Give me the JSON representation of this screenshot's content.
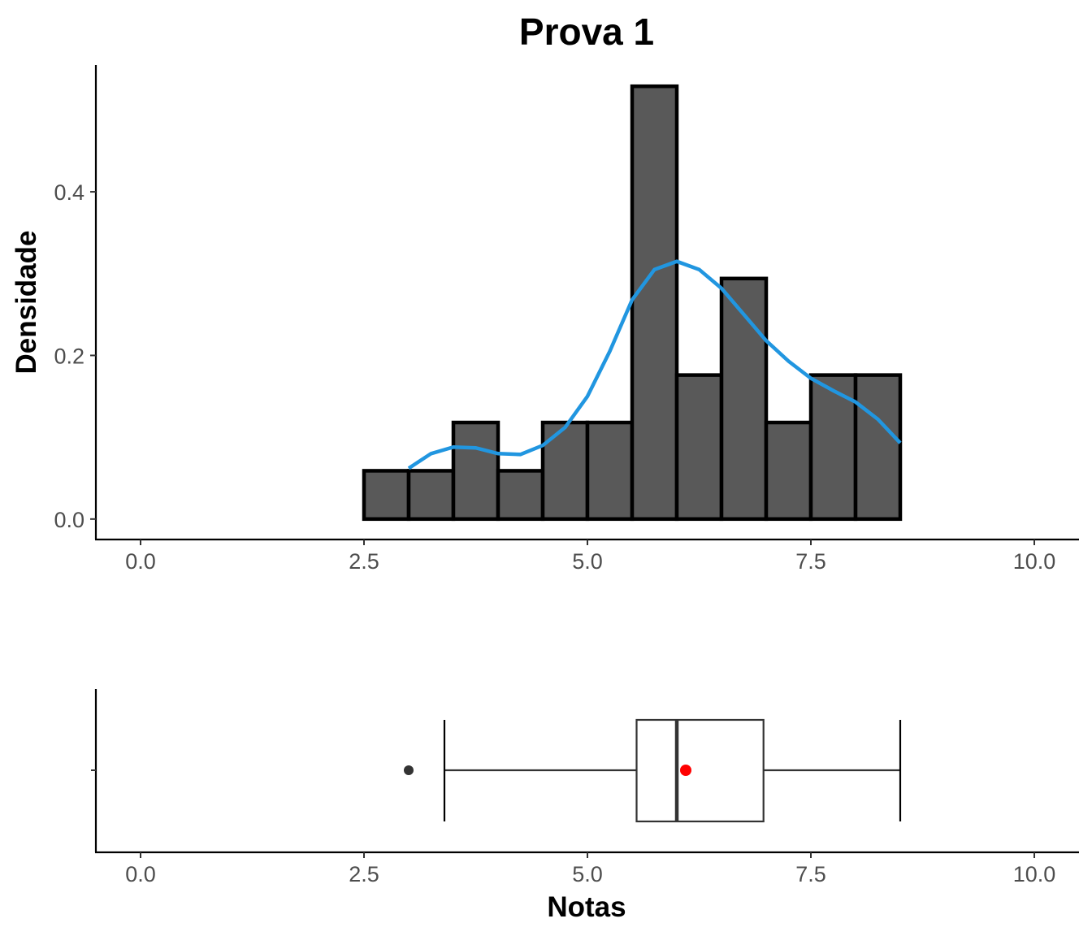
{
  "chart_data": [
    {
      "type": "bar",
      "subtype": "histogram",
      "title": "Prova 1",
      "xlabel": "",
      "ylabel": "Densidade",
      "xlim": [
        -0.5,
        10.5
      ],
      "ylim": [
        -0.025,
        0.555
      ],
      "x_ticks": [
        0,
        2.5,
        5,
        7.5,
        10
      ],
      "x_tick_labels": [
        "0.0",
        "2.5",
        "5.0",
        "7.5",
        "10.0"
      ],
      "y_ticks": [
        0,
        0.2,
        0.4
      ],
      "y_tick_labels": [
        "0.0",
        "0.2",
        "0.4"
      ],
      "bin_width": 0.5,
      "bin_starts": [
        0,
        0.5,
        1,
        1.5,
        2,
        2.5,
        3,
        3.5,
        4,
        4.5,
        5,
        5.5,
        6,
        6.5,
        7,
        7.5,
        8,
        8.5,
        9,
        9.5
      ],
      "values": [
        0,
        0,
        0,
        0,
        0,
        0.059,
        0.059,
        0.118,
        0.059,
        0.118,
        0.118,
        0.529,
        0.176,
        0.294,
        0.118,
        0.176,
        0.176,
        0,
        0,
        0
      ],
      "bar_fill": "#595959",
      "bar_stroke": "#000000",
      "density_curve": {
        "color": "#2196e0",
        "x": [
          3.0,
          3.25,
          3.5,
          3.75,
          4.0,
          4.25,
          4.5,
          4.75,
          5.0,
          5.25,
          5.5,
          5.75,
          6.0,
          6.25,
          6.5,
          6.75,
          7.0,
          7.25,
          7.5,
          7.75,
          8.0,
          8.25,
          8.5
        ],
        "y": [
          0.062,
          0.08,
          0.088,
          0.087,
          0.08,
          0.079,
          0.09,
          0.112,
          0.15,
          0.205,
          0.268,
          0.305,
          0.315,
          0.305,
          0.282,
          0.25,
          0.218,
          0.193,
          0.172,
          0.157,
          0.143,
          0.122,
          0.093
        ]
      }
    },
    {
      "type": "boxplot",
      "xlabel": "Notas",
      "xlim": [
        -0.5,
        10.5
      ],
      "x_ticks": [
        0,
        2.5,
        5,
        7.5,
        10
      ],
      "x_tick_labels": [
        "0.0",
        "2.5",
        "5.0",
        "7.5",
        "10.0"
      ],
      "whisker_low": 3.4,
      "q1": 5.55,
      "median": 6.0,
      "q3": 6.97,
      "whisker_high": 8.5,
      "outliers": [
        3.0
      ],
      "mean": 6.1,
      "mean_color": "#ff0000",
      "box_color": "#333333"
    }
  ]
}
